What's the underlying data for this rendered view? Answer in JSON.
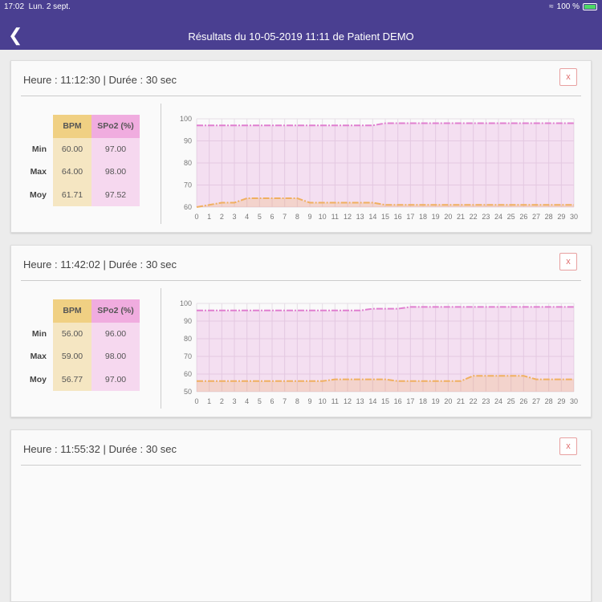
{
  "status_bar": {
    "time": "17:02",
    "date": "Lun. 2 sept.",
    "battery": "100 %"
  },
  "nav": {
    "title": "Résultats du 10-05-2019 11:11 de Patient DEMO",
    "back_icon": "chevron-left-icon"
  },
  "colors": {
    "nav": "#4a3f91",
    "bpm": "#f0b060",
    "spo2": "#e07fd0"
  },
  "table_headers": {
    "bpm": "BPM",
    "spo2": "SPo2 (%)",
    "min": "Min",
    "max": "Max",
    "moy": "Moy"
  },
  "close_label": "x",
  "cards": [
    {
      "header": "Heure : 11:12:30  |  Durée : 30 sec",
      "bpm": {
        "min": "60.00",
        "max": "64.00",
        "moy": "61.71"
      },
      "spo2": {
        "min": "97.00",
        "max": "98.00",
        "moy": "97.52"
      }
    },
    {
      "header": "Heure : 11:42:02  |  Durée : 30 sec",
      "bpm": {
        "min": "56.00",
        "max": "59.00",
        "moy": "56.77"
      },
      "spo2": {
        "min": "96.00",
        "max": "98.00",
        "moy": "97.00"
      }
    },
    {
      "header": "Heure : 11:55:32  |  Durée : 30 sec"
    }
  ],
  "chart_data": [
    {
      "type": "area",
      "x": [
        0,
        1,
        2,
        3,
        4,
        5,
        6,
        7,
        8,
        9,
        10,
        11,
        12,
        13,
        14,
        15,
        16,
        17,
        18,
        19,
        20,
        21,
        22,
        23,
        24,
        25,
        26,
        27,
        28,
        29,
        30
      ],
      "ylim": [
        60,
        100
      ],
      "yticks": [
        60,
        70,
        80,
        90,
        100
      ],
      "grid": true,
      "series": [
        {
          "key": "spo2",
          "values": [
            97,
            97,
            97,
            97,
            97,
            97,
            97,
            97,
            97,
            97,
            97,
            97,
            97,
            97,
            97,
            98,
            98,
            98,
            98,
            98,
            98,
            98,
            98,
            98,
            98,
            98,
            98,
            98,
            98,
            98,
            98
          ]
        },
        {
          "key": "bpm",
          "values": [
            60,
            61,
            62,
            62,
            64,
            64,
            64,
            64,
            64,
            62,
            62,
            62,
            62,
            62,
            62,
            61,
            61,
            61,
            61,
            61,
            61,
            61,
            61,
            61,
            61,
            61,
            61,
            61,
            61,
            61,
            61
          ]
        }
      ]
    },
    {
      "type": "area",
      "x": [
        0,
        1,
        2,
        3,
        4,
        5,
        6,
        7,
        8,
        9,
        10,
        11,
        12,
        13,
        14,
        15,
        16,
        17,
        18,
        19,
        20,
        21,
        22,
        23,
        24,
        25,
        26,
        27,
        28,
        29,
        30
      ],
      "ylim": [
        50,
        100
      ],
      "yticks": [
        50,
        60,
        70,
        80,
        90,
        100
      ],
      "grid": true,
      "series": [
        {
          "key": "spo2",
          "values": [
            96,
            96,
            96,
            96,
            96,
            96,
            96,
            96,
            96,
            96,
            96,
            96,
            96,
            96,
            97,
            97,
            97,
            98,
            98,
            98,
            98,
            98,
            98,
            98,
            98,
            98,
            98,
            98,
            98,
            98,
            98
          ]
        },
        {
          "key": "bpm",
          "values": [
            56,
            56,
            56,
            56,
            56,
            56,
            56,
            56,
            56,
            56,
            56,
            57,
            57,
            57,
            57,
            57,
            56,
            56,
            56,
            56,
            56,
            56,
            59,
            59,
            59,
            59,
            59,
            57,
            57,
            57,
            57
          ]
        }
      ]
    }
  ]
}
